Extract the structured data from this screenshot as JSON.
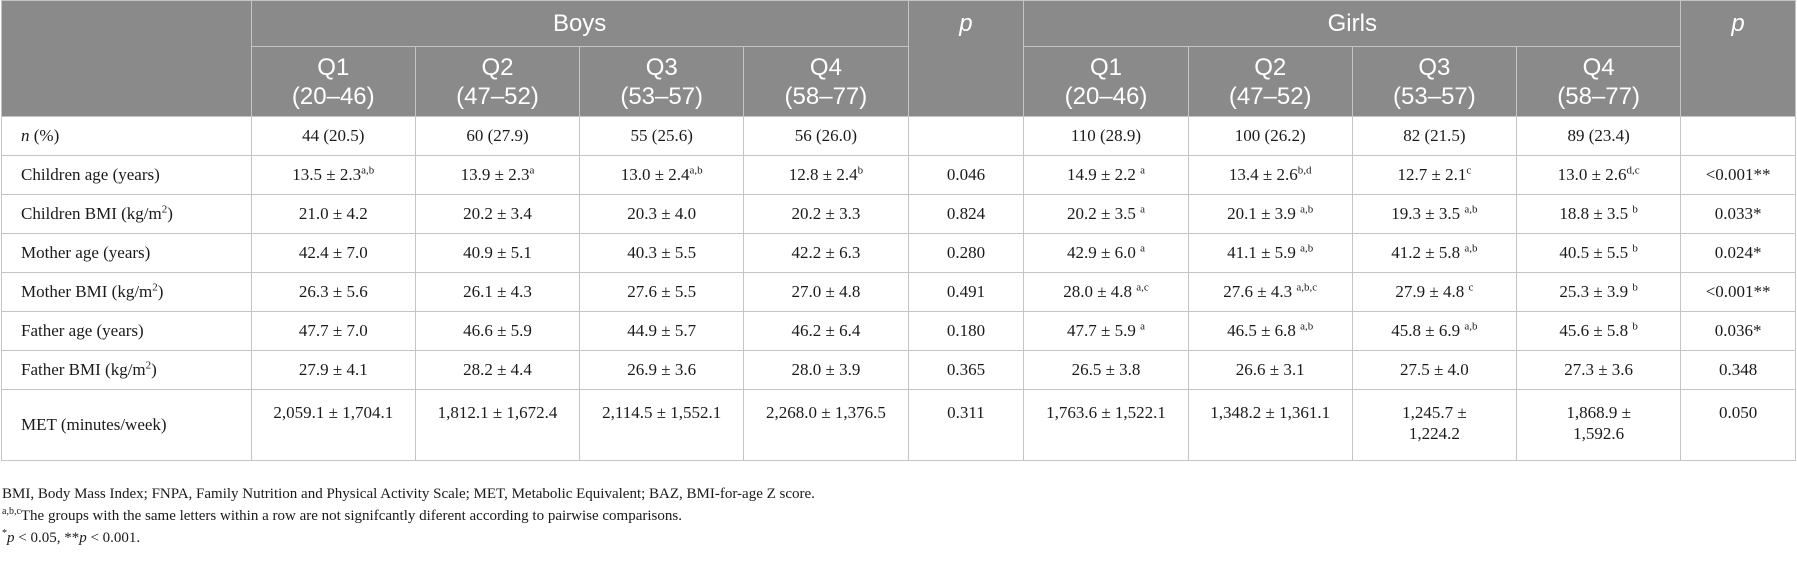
{
  "header": {
    "boys": "Boys",
    "girls": "Girls",
    "p": "p",
    "quartiles": [
      {
        "q": "Q1",
        "range": "(20–46)"
      },
      {
        "q": "Q2",
        "range": "(47–52)"
      },
      {
        "q": "Q3",
        "range": "(53–57)"
      },
      {
        "q": "Q4",
        "range": "(58–77)"
      }
    ]
  },
  "rows": [
    {
      "label_italic": "n",
      "label": " (%)",
      "boys": [
        {
          "v": "44 (20.5)"
        },
        {
          "v": "60 (27.9)"
        },
        {
          "v": "55 (25.6)"
        },
        {
          "v": "56 (26.0)"
        }
      ],
      "p_boys": "",
      "girls": [
        {
          "v": "110 (28.9)"
        },
        {
          "v": "100 (26.2)"
        },
        {
          "v": "82 (21.5)"
        },
        {
          "v": "89 (23.4)"
        }
      ],
      "p_girls": ""
    },
    {
      "label": "Children age (years)",
      "boys": [
        {
          "v": "13.5 ± 2.3",
          "s": "a,b"
        },
        {
          "v": "13.9 ± 2.3",
          "s": "a"
        },
        {
          "v": "13.0 ± 2.4",
          "s": "a,b"
        },
        {
          "v": "12.8 ± 2.4",
          "s": "b"
        }
      ],
      "p_boys": "0.046",
      "girls": [
        {
          "v": "14.9 ± 2.2 ",
          "s": "a"
        },
        {
          "v": "13.4 ± 2.6",
          "s": "b,d"
        },
        {
          "v": "12.7 ± 2.1",
          "s": "c"
        },
        {
          "v": "13.0 ± 2.6",
          "s": "d,c"
        }
      ],
      "p_girls": "<0.001**"
    },
    {
      "label": "Children BMI (kg/m",
      "label_sup": "2",
      "label_after": ")",
      "boys": [
        {
          "v": "21.0 ± 4.2"
        },
        {
          "v": "20.2 ± 3.4"
        },
        {
          "v": "20.3 ± 4.0"
        },
        {
          "v": "20.2 ± 3.3"
        }
      ],
      "p_boys": "0.824",
      "girls": [
        {
          "v": "20.2 ± 3.5 ",
          "s": "a"
        },
        {
          "v": "20.1 ± 3.9 ",
          "s": "a,b"
        },
        {
          "v": "19.3 ± 3.5 ",
          "s": "a,b"
        },
        {
          "v": "18.8 ± 3.5 ",
          "s": "b"
        }
      ],
      "p_girls": "0.033*"
    },
    {
      "label": "Mother age (years)",
      "boys": [
        {
          "v": "42.4 ± 7.0"
        },
        {
          "v": "40.9 ± 5.1"
        },
        {
          "v": "40.3 ± 5.5"
        },
        {
          "v": "42.2 ± 6.3"
        }
      ],
      "p_boys": "0.280",
      "girls": [
        {
          "v": "42.9 ± 6.0 ",
          "s": "a"
        },
        {
          "v": "41.1 ± 5.9 ",
          "s": "a,b"
        },
        {
          "v": "41.2 ± 5.8 ",
          "s": "a,b"
        },
        {
          "v": "40.5 ± 5.5 ",
          "s": "b"
        }
      ],
      "p_girls": "0.024*"
    },
    {
      "label": "Mother BMI (kg/m",
      "label_sup": "2",
      "label_after": ")",
      "boys": [
        {
          "v": "26.3 ± 5.6"
        },
        {
          "v": "26.1 ± 4.3"
        },
        {
          "v": "27.6 ± 5.5"
        },
        {
          "v": "27.0 ± 4.8"
        }
      ],
      "p_boys": "0.491",
      "girls": [
        {
          "v": "28.0 ± 4.8 ",
          "s": "a,c"
        },
        {
          "v": "27.6 ± 4.3 ",
          "s": "a,b,c"
        },
        {
          "v": "27.9 ± 4.8 ",
          "s": "c"
        },
        {
          "v": "25.3 ± 3.9 ",
          "s": "b"
        }
      ],
      "p_girls": "<0.001**"
    },
    {
      "label": "Father age (years)",
      "boys": [
        {
          "v": "47.7 ± 7.0"
        },
        {
          "v": "46.6 ± 5.9"
        },
        {
          "v": "44.9 ± 5.7"
        },
        {
          "v": "46.2 ± 6.4"
        }
      ],
      "p_boys": "0.180",
      "girls": [
        {
          "v": "47.7 ± 5.9 ",
          "s": "a"
        },
        {
          "v": "46.5 ± 6.8 ",
          "s": "a,b"
        },
        {
          "v": "45.8 ± 6.9 ",
          "s": "a,b"
        },
        {
          "v": "45.6 ± 5.8 ",
          "s": "b"
        }
      ],
      "p_girls": "0.036*"
    },
    {
      "label": "Father BMI (kg/m",
      "label_sup": "2",
      "label_after": ")",
      "boys": [
        {
          "v": "27.9 ± 4.1"
        },
        {
          "v": "28.2 ± 4.4"
        },
        {
          "v": "26.9 ± 3.6"
        },
        {
          "v": "28.0 ± 3.9"
        }
      ],
      "p_boys": "0.365",
      "girls": [
        {
          "v": "26.5 ± 3.8"
        },
        {
          "v": "26.6 ± 3.1"
        },
        {
          "v": "27.5 ± 4.0"
        },
        {
          "v": "27.3 ± 3.6"
        }
      ],
      "p_girls": "0.348"
    },
    {
      "label": "MET (minutes/week)",
      "tall": true,
      "boys": [
        {
          "v": "2,059.1 ± 1,704.1"
        },
        {
          "v": "1,812.1 ± 1,672.4"
        },
        {
          "v": "2,114.5 ± 1,552.1"
        },
        {
          "v": "2,268.0 ± 1,376.5"
        }
      ],
      "p_boys": "0.311",
      "girls": [
        {
          "v": "1,763.6 ± 1,522.1"
        },
        {
          "v": "1,348.2 ± 1,361.1"
        },
        {
          "v": "1,245.7 ±",
          "v2": "1,224.2"
        },
        {
          "v": "1,868.9 ±",
          "v2": "1,592.6"
        }
      ],
      "p_girls": "0.050"
    }
  ],
  "footnotes": {
    "abbrev": "BMI, Body Mass Index; FNPA, Family Nutrition and Physical Activity Scale; MET, Metabolic Equivalent; BAZ, BMI-for-age Z score.",
    "letters_sup": "a,b,c",
    "letters": "The groups with the same letters within a row are not signifcantly diferent according to pairwise comparisons.",
    "sig_star1": "*",
    "sig_p1": "p",
    "sig_mid": " < 0.05, **",
    "sig_p2": "p",
    "sig_end": " < 0.001."
  }
}
